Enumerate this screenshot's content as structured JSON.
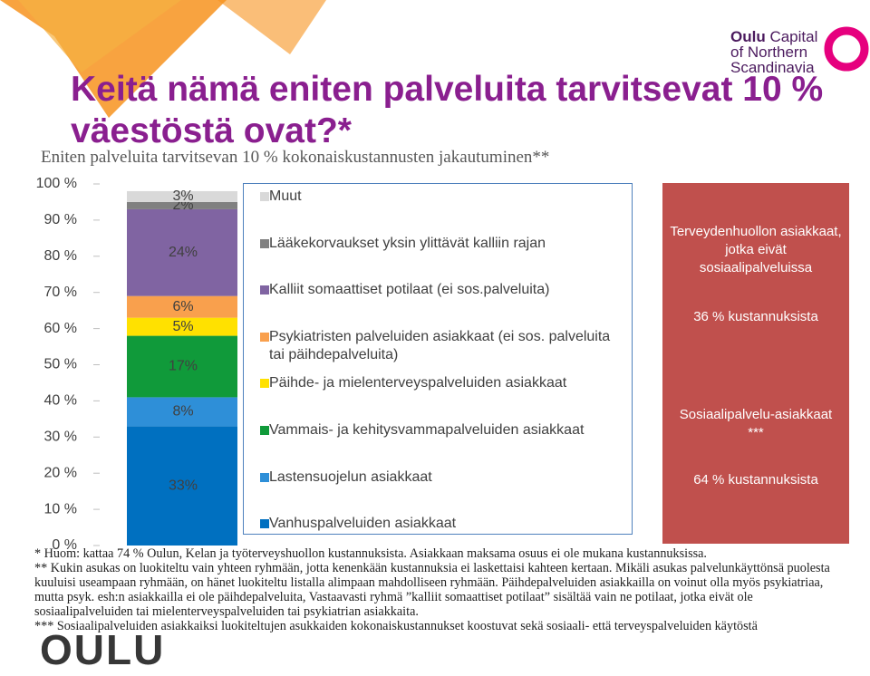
{
  "chart_data": {
    "type": "stacked-bar",
    "subtitle": "Eniten palveluita tarvitsevan 10 % kokonaiskustannusten jakautuminen**",
    "categories": [
      null
    ],
    "ylim": [
      0,
      100
    ],
    "yticks": [
      {
        "value": 0,
        "label": "0 %"
      },
      {
        "value": 10,
        "label": "10 %"
      },
      {
        "value": 20,
        "label": "20 %"
      },
      {
        "value": 30,
        "label": "30 %"
      },
      {
        "value": 40,
        "label": "40 %"
      },
      {
        "value": 50,
        "label": "50 %"
      },
      {
        "value": 60,
        "label": "60 %"
      },
      {
        "value": 70,
        "label": "70 %"
      },
      {
        "value": 80,
        "label": "80 %"
      },
      {
        "value": 90,
        "label": "90 %"
      },
      {
        "value": 100,
        "label": "100 %"
      }
    ],
    "series": [
      {
        "name": "Vanhuspalveluiden asiakkaat",
        "color": "#0070c0",
        "values": [
          33
        ],
        "value_labels": [
          "33%"
        ]
      },
      {
        "name": "Lastensuojelun asiakkaat",
        "color": "#2e8fd8",
        "values": [
          8
        ],
        "value_labels": [
          "8%"
        ]
      },
      {
        "name": "Vammais- ja kehitysvammapalveluiden asiakkaat",
        "color": "#109a3a",
        "values": [
          17
        ],
        "value_labels": [
          "17%"
        ]
      },
      {
        "name": "Päihde- ja mielenterveyspalveluiden asiakkaat",
        "color": "#ffe100",
        "values": [
          5
        ],
        "value_labels": [
          "5%"
        ]
      },
      {
        "name": "Psykiatristen palveluiden asiakkaat (ei sos. palveluita tai päihdepalveluita)",
        "color": "#f9a04d",
        "values": [
          6
        ],
        "value_labels": [
          "6%"
        ]
      },
      {
        "name": "Kalliit somaattiset potilaat (ei sos.palveluita)",
        "color": "#8064a2",
        "values": [
          24
        ],
        "value_labels": [
          "24%"
        ]
      },
      {
        "name": "Lääkekorvaukset yksin ylittävät kalliin rajan",
        "color": "#808080",
        "values": [
          2
        ],
        "value_labels": [
          "2%"
        ]
      },
      {
        "name": "Muut",
        "color": "#d9d9d9",
        "values": [
          3
        ],
        "value_labels": [
          "3%"
        ]
      }
    ]
  },
  "slide": {
    "title": "Keitä nämä eniten palveluita tarvitsevat 10 % väestöstä ovat?*",
    "logo": {
      "line1_bold": "Oulu",
      "line1": "Capital",
      "line2": "of Northern",
      "line3": "Scandinavia"
    },
    "footer_logo": "OULU",
    "box": {
      "top_text": " Terveydenhuollon asiakkaat, jotka eivät sosiaalipalveluissa ",
      "top_share": "36 % kustannuksista",
      "bottom_text": " Sosiaalipalvelu-asiakkaat ***",
      "bottom_share": "64 % kustannuksista"
    },
    "notes": [
      "* Huom: kattaa 74 % Oulun, Kelan ja työterveyshuollon kustannuksista. Asiakkaan maksama osuus ei ole mukana kustannuksissa.",
      "** Kukin asukas on luokiteltu vain yhteen ryhmään, jotta kenenkään kustannuksia ei laskettaisi kahteen kertaan. Mikäli asukas palvelunkäyttönsä puolesta kuuluisi useampaan ryhmään, on hänet luokiteltu listalla alimpaan mahdolliseen ryhmään. Päihdepalveluiden asiakkailla on voinut olla myös psykiatriaa, mutta psyk. esh:n asiakkailla ei ole päihdepalveluita, Vastaavasti ryhmä ”kalliit somaattiset potilaat” sisältää vain ne potilaat, jotka eivät ole sosiaalipalveluiden tai mielenterveyspalveluiden tai psykiatrian asiakkaita.",
      "*** Sosiaalipalveluiden asiakkaiksi luokiteltujen asukkaiden kokonaiskustannukset koostuvat sekä sosiaali- että terveyspalveluiden käytöstä"
    ]
  }
}
